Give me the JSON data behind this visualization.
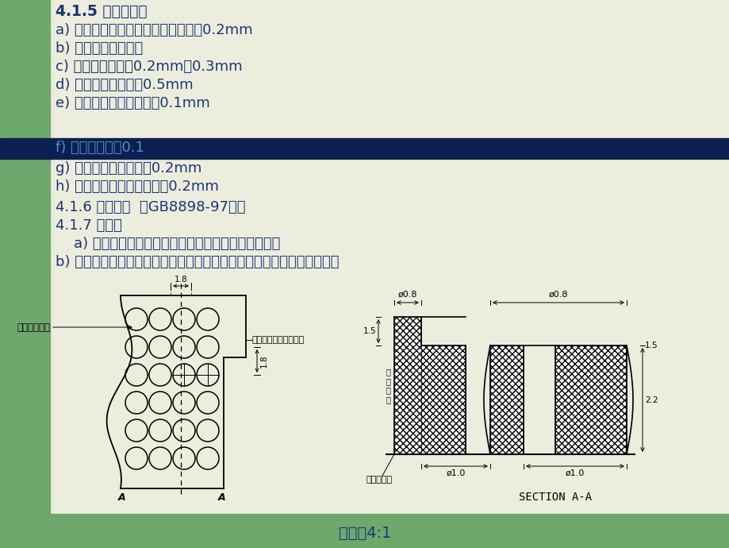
{
  "bg_color": "#ededde",
  "green_color": "#6fa86c",
  "dark_blue_color": "#0d1f50",
  "text_blue": "#1a3575",
  "title": "4.1.5 间隙问题：",
  "line_a": "a) 与电源按鈕和小门最小配合处单辰0.2mm",
  "line_b": "b) 按键配合不得卡死",
  "line_c": "c) 与机芯配合间隙0.2mm～0.3mm",
  "line_d": "d) 与后盖配合间隙＜0.5mm",
  "line_e": "e) 与导光柱配合间隙单辰0.1mm",
  "line_f": "f) 平整度间差：0.1",
  "line_g": "g) 与提手配合间隙单辰0.2mm",
  "line_h": "h) 与后盖螺钉柱配合间隙为0.2mm",
  "line_416": "4.1.6 安全性：  按GB8898-97规定",
  "line_417": "4.1.7 其它：",
  "line_a2": "    a) 扬声器固定考虑减振措施，以消除机振和微音效应",
  "line_b2": "b) 为满足声性能和外观视觉效果要求，注塑成型的喇叭圆孔尺寸如下图：",
  "ratio": "比例：4:1",
  "section_aa": "SECTION A-A",
  "blind_label": "面框盲孔区域",
  "through_label": "扬声器出声区域为通孔",
  "face_label": "面框外表面",
  "wall_label": "面框壁厚"
}
